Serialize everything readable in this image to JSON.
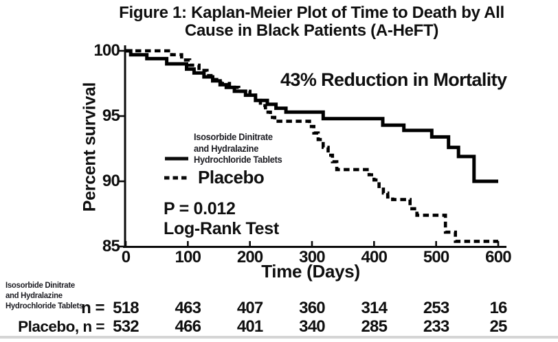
{
  "figure_title_lines": [
    "Figure 1: Kaplan-Meier Plot of Time to Death by All",
    "Cause in Black Patients (A-HeFT)"
  ],
  "annotation": "43% Reduction in Mortality",
  "stats": {
    "p_value": "P = 0.012",
    "test_name": "Log-Rank Test"
  },
  "axes": {
    "ylabel": "Percent survival",
    "xlabel": "Time (Days)"
  },
  "legend": {
    "treatment_label_lines": [
      "Isosorbide Dinitrate",
      "and Hydralazine",
      "Hydrochloride Tablets"
    ],
    "placebo_label": "Placebo"
  },
  "risk_table": {
    "treatment_label_lines": [
      "Isosorbide Dinitrate",
      "and Hydralazine",
      "Hydrochloride Tablets"
    ],
    "treatment_prefix": "n =",
    "placebo_prefix": "Placebo, n =",
    "days": [
      0,
      100,
      200,
      300,
      400,
      500,
      600
    ],
    "treatment_counts": [
      518,
      463,
      407,
      360,
      314,
      253,
      16
    ],
    "placebo_counts": [
      532,
      466,
      401,
      340,
      285,
      233,
      25
    ]
  },
  "colors": {
    "ink": "#0b0b0b",
    "background": "#ffffff",
    "bottom_rule": "#b3b3b3"
  },
  "chart_data": {
    "type": "line",
    "subtype": "kaplan-meier-step",
    "title": "Figure 1: Kaplan-Meier Plot of Time to Death by All Cause in Black Patients (A-HeFT)",
    "xlabel": "Time (Days)",
    "ylabel": "Percent survival",
    "xlim": [
      0,
      600
    ],
    "ylim": [
      85,
      100
    ],
    "xticks": [
      0,
      100,
      200,
      300,
      400,
      500,
      600
    ],
    "yticks": [
      100,
      95,
      90,
      85
    ],
    "grid": false,
    "legend_position": "center-left",
    "annotations": [
      "43% Reduction in Mortality",
      "P = 0.012",
      "Log-Rank Test"
    ],
    "series": [
      {
        "name": "Isosorbide Dinitrate and Hydralazine Hydrochloride Tablets",
        "line_style": "solid",
        "color": "#000000",
        "final_value": 90.0,
        "step_points": [
          [
            0,
            100
          ],
          [
            8,
            99.7
          ],
          [
            34,
            99.4
          ],
          [
            66,
            99.0
          ],
          [
            98,
            98.6
          ],
          [
            110,
            98.3
          ],
          [
            126,
            98.0
          ],
          [
            140,
            97.7
          ],
          [
            152,
            97.4
          ],
          [
            162,
            97.2
          ],
          [
            175,
            96.9
          ],
          [
            193,
            96.6
          ],
          [
            209,
            96.2
          ],
          [
            228,
            95.9
          ],
          [
            242,
            95.6
          ],
          [
            258,
            95.3
          ],
          [
            318,
            94.8
          ],
          [
            414,
            94.3
          ],
          [
            448,
            93.9
          ],
          [
            493,
            93.4
          ],
          [
            520,
            92.6
          ],
          [
            536,
            91.9
          ],
          [
            561,
            90.0
          ],
          [
            600,
            90.0
          ]
        ]
      },
      {
        "name": "Placebo",
        "line_style": "dashed",
        "color": "#000000",
        "final_value": 85.4,
        "step_points": [
          [
            0,
            100
          ],
          [
            74,
            99.7
          ],
          [
            90,
            99.3
          ],
          [
            103,
            98.9
          ],
          [
            118,
            98.5
          ],
          [
            131,
            98.1
          ],
          [
            142,
            97.8
          ],
          [
            153,
            97.5
          ],
          [
            167,
            97.2
          ],
          [
            182,
            96.9
          ],
          [
            200,
            96.6
          ],
          [
            209,
            96.2
          ],
          [
            217,
            95.8
          ],
          [
            225,
            95.3
          ],
          [
            233,
            94.9
          ],
          [
            240,
            94.6
          ],
          [
            296,
            94.2
          ],
          [
            303,
            93.7
          ],
          [
            310,
            93.2
          ],
          [
            318,
            92.6
          ],
          [
            326,
            92.0
          ],
          [
            333,
            91.5
          ],
          [
            340,
            90.9
          ],
          [
            392,
            90.5
          ],
          [
            400,
            90.1
          ],
          [
            408,
            89.6
          ],
          [
            415,
            89.1
          ],
          [
            422,
            88.8
          ],
          [
            430,
            88.6
          ],
          [
            458,
            87.9
          ],
          [
            469,
            87.4
          ],
          [
            515,
            86.1
          ],
          [
            531,
            85.4
          ],
          [
            600,
            85.4
          ]
        ]
      }
    ],
    "at_risk": {
      "days": [
        0,
        100,
        200,
        300,
        400,
        500,
        600
      ],
      "treatment": [
        518,
        463,
        407,
        360,
        314,
        253,
        16
      ],
      "placebo": [
        532,
        466,
        401,
        340,
        285,
        233,
        25
      ]
    }
  }
}
